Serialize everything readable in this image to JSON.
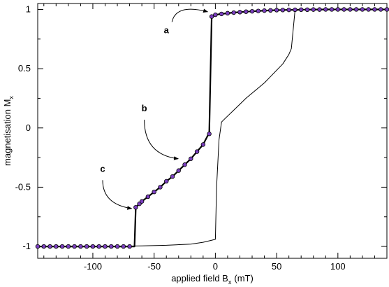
{
  "chart_data": {
    "type": "line",
    "title": "",
    "xlabel": "applied field B",
    "xlabel_sub": "x",
    "xlabel_unit": "(mT)",
    "ylabel": "magnetisation M",
    "ylabel_sub": "x",
    "xlim": [
      -145,
      140
    ],
    "ylim": [
      -1.1,
      1.05
    ],
    "xticks": [
      -100,
      -50,
      0,
      50,
      100
    ],
    "xtick_labels": [
      "-100",
      "-50",
      "0",
      "50",
      "100"
    ],
    "yticks": [
      -1,
      -0.5,
      0,
      0.5,
      1
    ],
    "ytick_labels": [
      "-1",
      "-0.5",
      "0",
      "0.5",
      "1"
    ],
    "grid": false,
    "series": [
      {
        "style": "thick-line-with-markers",
        "color": "#000000",
        "marker_color": "#7b3fbf",
        "x": [
          -145,
          -140,
          -135,
          -130,
          -125,
          -120,
          -115,
          -110,
          -105,
          -100,
          -95,
          -90,
          -85,
          -80,
          -75,
          -70,
          -66,
          -65,
          -62,
          -60,
          -55,
          -50,
          -45,
          -40,
          -35,
          -30,
          -25,
          -20,
          -15,
          -10,
          -6,
          -5,
          -3,
          0,
          5,
          10,
          15,
          20,
          25,
          30,
          35,
          40,
          45,
          50,
          55,
          60,
          65,
          70,
          75,
          80,
          85,
          90,
          95,
          100,
          105,
          110,
          115,
          120,
          125,
          130,
          135,
          140
        ],
        "y": [
          -1,
          -1,
          -1,
          -1,
          -1,
          -1,
          -1,
          -1,
          -1,
          -1,
          -1,
          -1,
          -1,
          -1,
          -1,
          -1,
          -1,
          -0.67,
          -0.64,
          -0.62,
          -0.58,
          -0.54,
          -0.5,
          -0.45,
          -0.41,
          -0.36,
          -0.31,
          -0.26,
          -0.2,
          -0.14,
          -0.06,
          -0.05,
          0.94,
          0.955,
          0.962,
          0.968,
          0.973,
          0.977,
          0.981,
          0.984,
          0.987,
          0.99,
          0.992,
          0.994,
          0.995,
          0.996,
          0.997,
          0.998,
          0.998,
          0.999,
          0.999,
          1,
          1,
          1,
          1,
          1,
          1,
          1,
          1,
          1,
          1,
          1
        ],
        "markers": [
          true,
          true,
          true,
          true,
          true,
          true,
          true,
          true,
          true,
          true,
          true,
          true,
          true,
          true,
          true,
          true,
          false,
          true,
          true,
          true,
          true,
          true,
          true,
          true,
          true,
          true,
          true,
          true,
          true,
          true,
          false,
          true,
          true,
          true,
          true,
          true,
          true,
          true,
          true,
          true,
          true,
          true,
          true,
          true,
          true,
          true,
          true,
          true,
          true,
          true,
          true,
          true,
          true,
          true,
          true,
          true,
          true,
          true,
          true,
          true,
          true,
          true
        ]
      },
      {
        "style": "thin-line",
        "color": "#000000",
        "x": [
          -145,
          -80,
          -60,
          -40,
          -20,
          -10,
          -4,
          0,
          1,
          3,
          5,
          8,
          15,
          25,
          40,
          55,
          60,
          62,
          65,
          70,
          80,
          100,
          140
        ],
        "y": [
          -1,
          -0.998,
          -0.995,
          -0.99,
          -0.98,
          -0.965,
          -0.95,
          -0.94,
          -0.5,
          -0.1,
          0.05,
          0.08,
          0.15,
          0.25,
          0.38,
          0.54,
          0.62,
          0.67,
          0.99,
          0.996,
          0.998,
          1,
          1
        ]
      }
    ],
    "annotations": [
      {
        "label": "a",
        "x": -40,
        "y": 0.8,
        "arrow_to": [
          -4,
          0.98
        ]
      },
      {
        "label": "b",
        "x": -58,
        "y": 0.14,
        "arrow_to": [
          -28,
          -0.26
        ]
      },
      {
        "label": "c",
        "x": -92,
        "y": -0.37,
        "arrow_to": [
          -66,
          -0.68
        ]
      }
    ]
  }
}
